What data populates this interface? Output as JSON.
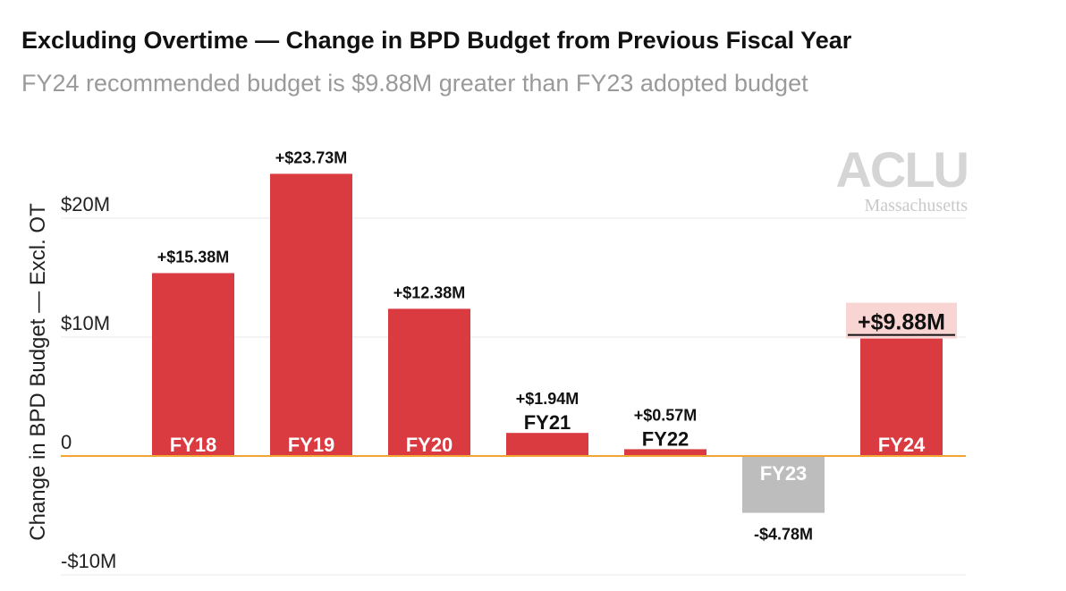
{
  "title": "Excluding Overtime — Change in BPD Budget from Previous Fiscal Year",
  "subtitle": "FY24 recommended budget is $9.88M greater than FY23 adopted budget",
  "logo": {
    "main": "ACLU",
    "sub": "Massachusetts"
  },
  "colors": {
    "positive": "#d93b41",
    "negative": "#bdbdbd",
    "zero_line": "#f2a534",
    "highlight": "#f8d4d2",
    "grid": "#e8e8e8"
  },
  "chart_data": {
    "type": "bar",
    "title": "Excluding Overtime — Change in BPD Budget from Previous Fiscal Year",
    "subtitle": "FY24 recommended budget is $9.88M greater than FY23 adopted budget",
    "xlabel": "",
    "ylabel": "Change in BPD Budget — Excl. OT",
    "categories": [
      "FY18",
      "FY19",
      "FY20",
      "FY21",
      "FY22",
      "FY23",
      "FY24"
    ],
    "values": [
      15.38,
      23.73,
      12.38,
      1.94,
      0.57,
      -4.78,
      9.88
    ],
    "data_labels": [
      "+$15.38M",
      "+$23.73M",
      "+$12.38M",
      "+$1.94M",
      "+$0.57M",
      "-$4.78M",
      "+$9.88M"
    ],
    "units": "M",
    "ylim": [
      -10.2,
      25
    ],
    "yticks": [
      -10,
      0,
      10,
      20
    ],
    "ytick_labels": [
      "-$10M",
      "0",
      "$10M",
      "$20M"
    ],
    "grid": true,
    "highlighted_category": "FY24"
  }
}
